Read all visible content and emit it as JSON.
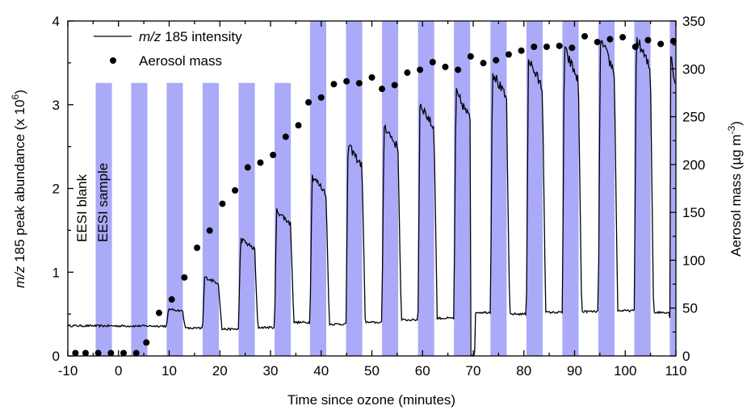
{
  "chart_data": {
    "type": "line",
    "xlabel": "Time since ozone (minutes)",
    "ylabel_left": {
      "pre": "m/z",
      "rest": " 185 peak abundance (x 10",
      "exp": "6",
      "post": ")"
    },
    "ylabel_right": {
      "pre": "Aerosol mass (µg m",
      "exp": "-3",
      "post": ")"
    },
    "xlim": [
      -10,
      110
    ],
    "ylim_left": [
      0,
      4
    ],
    "ylim_right": [
      0,
      350
    ],
    "x_ticks": [
      -10,
      0,
      10,
      20,
      30,
      40,
      50,
      60,
      70,
      80,
      90,
      100,
      110
    ],
    "y_left_ticks": [
      0,
      1,
      2,
      3,
      4
    ],
    "y_right_ticks": [
      0,
      50,
      100,
      150,
      200,
      250,
      300,
      350
    ],
    "legend": [
      {
        "kind": "line",
        "pre": "m/z",
        "rest": " 185 intensity"
      },
      {
        "kind": "dot",
        "label": "Aerosol mass"
      }
    ],
    "shade_color": "#aaaaf8",
    "annotations": [
      "EESI blank",
      "EESI sample"
    ],
    "sample_periods": [
      {
        "start": -4.5,
        "end": -1.3,
        "top": 3.26
      },
      {
        "start": 2.5,
        "end": 5.7,
        "top": 3.26
      },
      {
        "start": 9.5,
        "end": 12.7,
        "top": 3.26
      },
      {
        "start": 16.6,
        "end": 19.8,
        "top": 3.26
      },
      {
        "start": 23.7,
        "end": 26.9,
        "top": 3.26
      },
      {
        "start": 30.8,
        "end": 34.0,
        "top": 3.26
      },
      {
        "start": 37.8,
        "end": 41.0,
        "top": 4.0
      },
      {
        "start": 44.9,
        "end": 48.1,
        "top": 4.0
      },
      {
        "start": 52.0,
        "end": 55.2,
        "top": 4.0
      },
      {
        "start": 59.1,
        "end": 62.3,
        "top": 4.0
      },
      {
        "start": 66.2,
        "end": 69.4,
        "top": 4.0
      },
      {
        "start": 73.4,
        "end": 76.6,
        "top": 4.0
      },
      {
        "start": 80.5,
        "end": 83.7,
        "top": 4.0
      },
      {
        "start": 87.6,
        "end": 90.8,
        "top": 4.0
      },
      {
        "start": 94.7,
        "end": 97.9,
        "top": 4.0
      },
      {
        "start": 101.8,
        "end": 105.0,
        "top": 4.0
      },
      {
        "start": 108.8,
        "end": 110.0,
        "top": 4.0
      }
    ],
    "intensity_baseline": {
      "start": 0.36,
      "end": 0.34
    },
    "intensity_peaks": [
      {
        "start": 9.5,
        "end": 12.7,
        "peak": 0.56,
        "base": 0.33
      },
      {
        "start": 16.6,
        "end": 19.8,
        "peak": 0.94,
        "base": 0.32
      },
      {
        "start": 23.7,
        "end": 26.9,
        "peak": 1.4,
        "base": 0.34
      },
      {
        "start": 30.8,
        "end": 34.0,
        "peak": 1.74,
        "base": 0.4
      },
      {
        "start": 37.8,
        "end": 41.0,
        "peak": 2.15,
        "base": 0.38
      },
      {
        "start": 44.9,
        "end": 48.1,
        "peak": 2.52,
        "base": 0.4
      },
      {
        "start": 52.0,
        "end": 55.2,
        "peak": 2.76,
        "base": 0.43
      },
      {
        "start": 59.1,
        "end": 62.3,
        "peak": 3.02,
        "base": 0.45
      },
      {
        "start": 66.2,
        "end": 69.4,
        "peak": 3.15,
        "base": 0.0
      },
      {
        "start": 73.4,
        "end": 76.6,
        "peak": 3.4,
        "base": 0.5
      },
      {
        "start": 80.5,
        "end": 83.7,
        "peak": 3.55,
        "base": 0.52
      },
      {
        "start": 87.6,
        "end": 90.8,
        "peak": 3.66,
        "base": 0.53
      },
      {
        "start": 94.7,
        "end": 97.9,
        "peak": 3.77,
        "base": 0.54
      },
      {
        "start": 101.8,
        "end": 105.0,
        "peak": 3.8,
        "base": 0.52
      },
      {
        "start": 108.8,
        "end": 110.0,
        "peak": 3.6,
        "base": 0.5
      }
    ],
    "aerosol_mass": {
      "x": [
        -8.5,
        -6.5,
        -4,
        -1.5,
        1,
        3.5,
        5.5,
        8,
        10.5,
        13,
        15.5,
        18,
        20.5,
        23,
        25.5,
        28,
        30.5,
        33,
        35.5,
        37.5,
        40,
        42.5,
        45,
        47.5,
        50,
        52,
        54.5,
        57,
        59.5,
        62,
        64.5,
        67,
        69.5,
        72,
        74.5,
        77,
        79.5,
        82,
        84.5,
        87,
        89.5,
        92,
        94.5,
        97,
        99.5,
        102,
        104.5,
        107,
        109.5
      ],
      "y": [
        3,
        3,
        3,
        3,
        3,
        3,
        14,
        45,
        59,
        82,
        113,
        131,
        159,
        173,
        197,
        202,
        210,
        229,
        241,
        265,
        270,
        284,
        287,
        285,
        291,
        279,
        283,
        296,
        299,
        307,
        302,
        299,
        313,
        306,
        309,
        315,
        319,
        323,
        323,
        324,
        322,
        334,
        328,
        331,
        333,
        323,
        330,
        326,
        329
      ]
    }
  }
}
